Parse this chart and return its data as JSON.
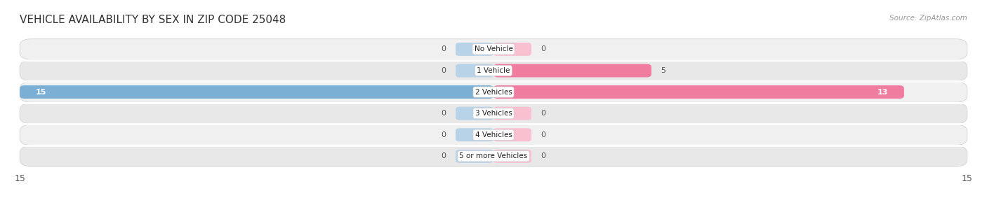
{
  "title": "VEHICLE AVAILABILITY BY SEX IN ZIP CODE 25048",
  "source": "Source: ZipAtlas.com",
  "categories": [
    "No Vehicle",
    "1 Vehicle",
    "2 Vehicles",
    "3 Vehicles",
    "4 Vehicles",
    "5 or more Vehicles"
  ],
  "male_values": [
    0,
    0,
    15,
    0,
    0,
    0
  ],
  "female_values": [
    0,
    5,
    13,
    0,
    0,
    0
  ],
  "male_color": "#7bafd4",
  "female_color": "#f07ca0",
  "male_color_light": "#b8d3e8",
  "female_color_light": "#f9c0d0",
  "row_bg_even": "#f0f0f0",
  "row_bg_odd": "#e8e8e8",
  "row_shadow": "#d8d8d8",
  "xlim": 15,
  "title_fontsize": 11,
  "figsize": [
    14.06,
    3.06
  ],
  "dpi": 100,
  "stub_size": 1.2,
  "bar_height": 0.62
}
